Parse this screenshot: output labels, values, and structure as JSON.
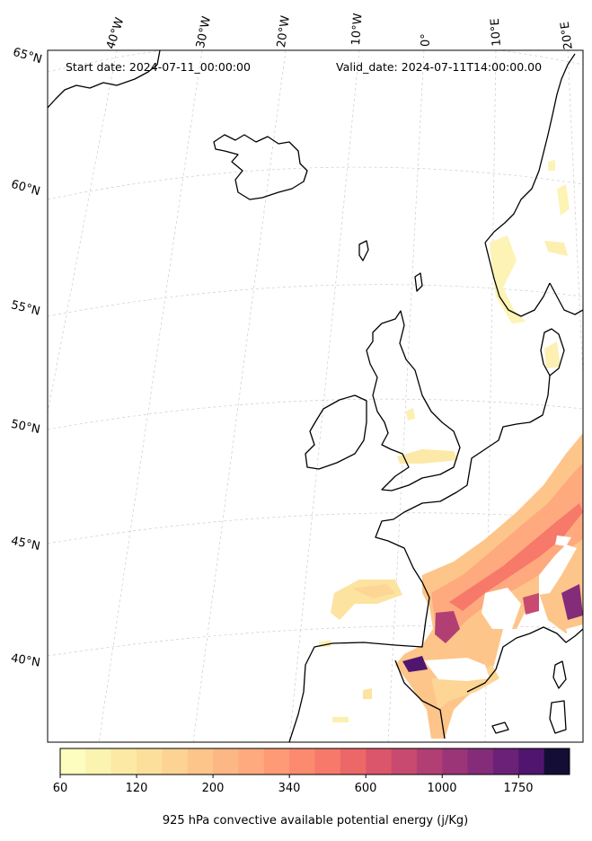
{
  "header": {
    "start_date": "Start date: 2024-07-11_00:00:00",
    "valid_date": "Valid_date: 2024-07-11T14:00:00.00"
  },
  "lat_labels": [
    "65°N",
    "60°N",
    "55°N",
    "50°N",
    "45°N",
    "40°N"
  ],
  "lon_labels": [
    "40°W",
    "30°W",
    "20°W",
    "10°W",
    "0°",
    "10°E",
    "20°E"
  ],
  "colorbar": {
    "title": "925 hPa convective available potential energy (j/Kg)",
    "tick_labels": [
      "60",
      "120",
      "200",
      "340",
      "600",
      "1000",
      "1750"
    ],
    "colors": [
      "#fcfdbf",
      "#fbf3b0",
      "#fbe9a4",
      "#fbdf9a",
      "#fcd392",
      "#fdc58a",
      "#fdb784",
      "#fea97e",
      "#fe9a76",
      "#fb8a6e",
      "#f6796a",
      "#ec6768",
      "#dc566b",
      "#c84a70",
      "#b23f74",
      "#9b3577",
      "#842c79",
      "#6b2178",
      "#50166f",
      "#140e36"
    ]
  },
  "map": {
    "ocean_color": "#ffffff",
    "coastline_color": "#000000",
    "gridline_color": "#cccccc"
  }
}
